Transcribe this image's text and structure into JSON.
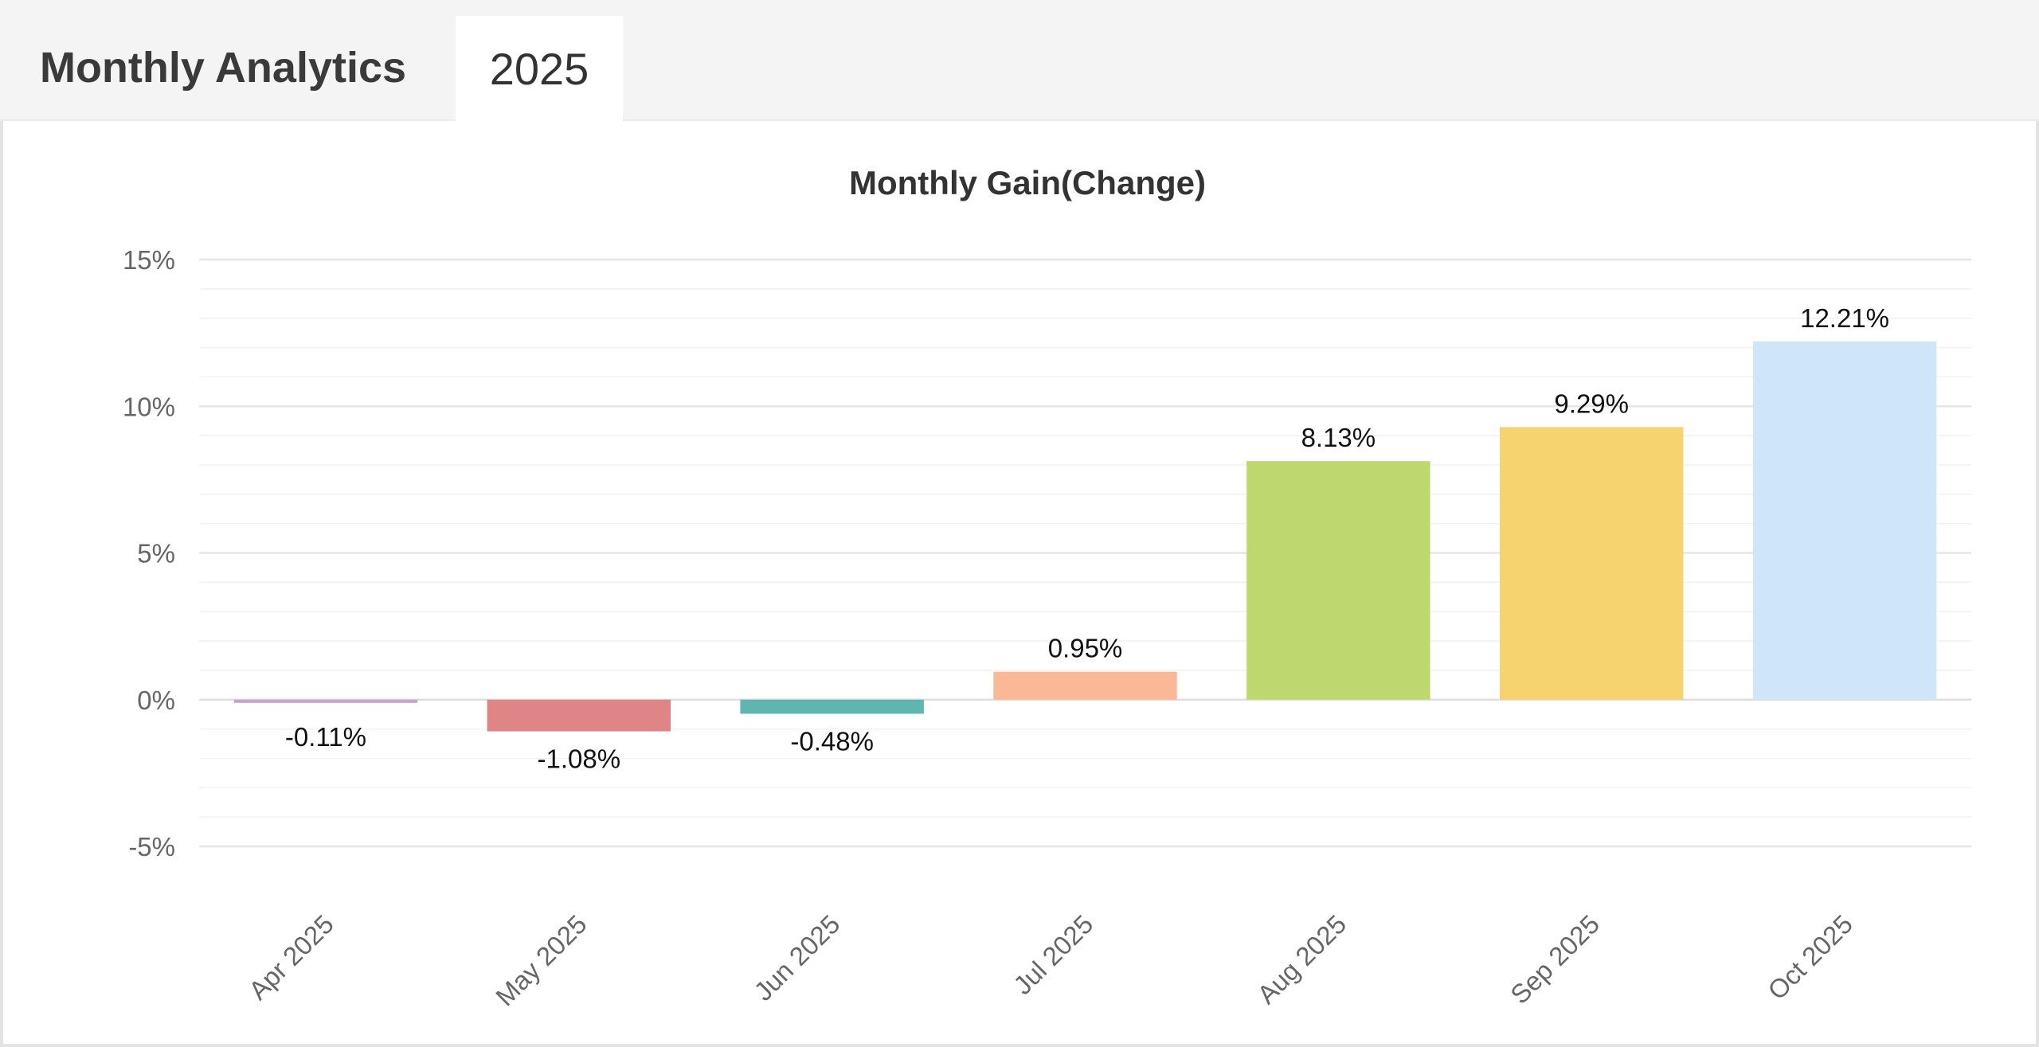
{
  "tabs": {
    "title": "Monthly Analytics",
    "year": "2025"
  },
  "colors": {
    "grid_major": "#e6e6e6",
    "grid_minor": "#f1f1f1",
    "zero_line": "#dedede"
  },
  "chart_data": {
    "type": "bar",
    "title": "Monthly Gain(Change)",
    "xlabel": "",
    "ylabel": "",
    "categories": [
      "Apr 2025",
      "May 2025",
      "Jun 2025",
      "Jul 2025",
      "Aug 2025",
      "Sep 2025",
      "Oct 2025"
    ],
    "values": [
      -0.11,
      -1.08,
      -0.48,
      0.95,
      8.13,
      9.29,
      12.21
    ],
    "value_labels": [
      "-0.11%",
      "-1.08%",
      "-0.48%",
      "0.95%",
      "8.13%",
      "9.29%",
      "12.21%"
    ],
    "bar_colors": [
      "#c4a4c9",
      "#e08587",
      "#5fb6b0",
      "#fbb897",
      "#bdd86f",
      "#f6d36f",
      "#cfe5f8"
    ],
    "ylim": [
      -5,
      15
    ],
    "y_ticks": [
      15,
      10,
      5,
      0,
      -5
    ],
    "y_tick_labels": [
      "15%",
      "10%",
      "5%",
      "0%",
      "-5%"
    ],
    "grid": true,
    "legend": "none"
  }
}
